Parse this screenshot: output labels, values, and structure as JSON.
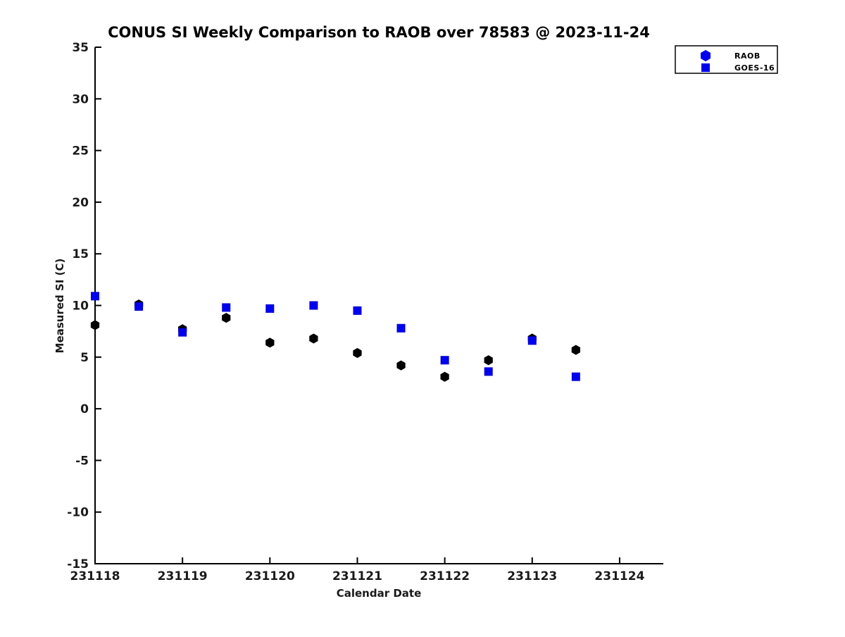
{
  "chart_data": {
    "type": "scatter",
    "title": "CONUS SI Weekly Comparison to RAOB over 78583 @ 2023-11-24",
    "xlabel": "Calendar Date",
    "ylabel": "Measured SI (C)",
    "xlim": [
      231118,
      231124.5
    ],
    "ylim": [
      -15,
      35
    ],
    "xticks": [
      231118,
      231119,
      231120,
      231121,
      231122,
      231123,
      231124
    ],
    "xtick_labels": [
      "231118",
      "231119",
      "231120",
      "231121",
      "231122",
      "231123",
      "231124"
    ],
    "yticks": [
      -15,
      -10,
      -5,
      0,
      5,
      10,
      15,
      20,
      25,
      30,
      35
    ],
    "ytick_labels": [
      "-15",
      "-10",
      "-5",
      "0",
      "5",
      "10",
      "15",
      "20",
      "25",
      "30",
      "35"
    ],
    "grid": false,
    "legend_position": "upper-right-outside",
    "x": [
      231118,
      231118.5,
      231119,
      231119.5,
      231120,
      231120.5,
      231121,
      231121.5,
      231122,
      231122.5,
      231123,
      231123.5
    ],
    "series": [
      {
        "name": "RAOB",
        "marker": "hexagon",
        "data_color": "#000000",
        "edge_color": "#000000",
        "legend_marker_color": "#0000ee",
        "values": [
          8.1,
          10.1,
          7.7,
          8.8,
          6.4,
          6.8,
          5.4,
          4.2,
          3.1,
          4.7,
          6.8,
          5.7
        ]
      },
      {
        "name": "GOES-16",
        "marker": "square",
        "data_color": "#0000f0",
        "edge_color": "#0000c8",
        "legend_marker_color": "#0000ee",
        "values": [
          10.9,
          9.9,
          7.4,
          9.8,
          9.7,
          10.0,
          9.5,
          7.8,
          4.7,
          3.6,
          6.6,
          3.1
        ]
      }
    ],
    "axis_color": "#000000"
  }
}
